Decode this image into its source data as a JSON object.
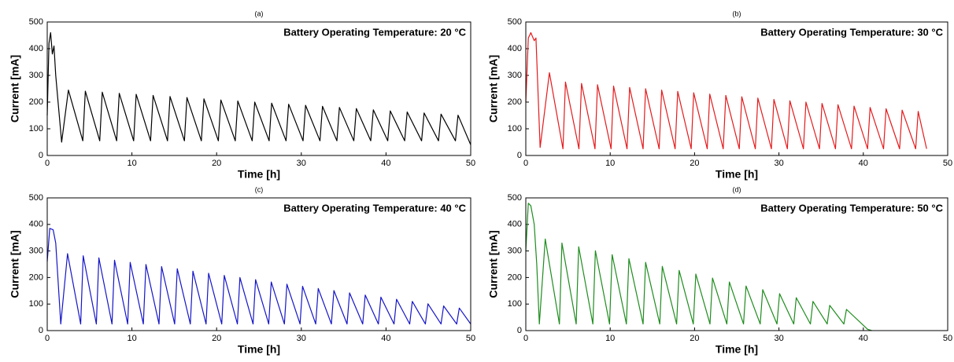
{
  "chart_data": [
    {
      "type": "line",
      "title": "(a)",
      "annotation": "Battery Operating Temperature: 20 °C",
      "x_label": "Time [h]",
      "y_label": "Current [mA]",
      "xlim": [
        0,
        50
      ],
      "ylim": [
        0,
        500
      ],
      "xticks": [
        0,
        10,
        20,
        30,
        40,
        50
      ],
      "yticks": [
        0,
        100,
        200,
        300,
        400,
        500
      ],
      "color": "#000000",
      "x": [
        0,
        0.2,
        0.4,
        0.6,
        0.8,
        1.0,
        1.7,
        2.5,
        4.2,
        4.5,
        6.2,
        6.5,
        8.2,
        8.5,
        10.2,
        10.5,
        12.2,
        12.5,
        14.2,
        14.5,
        16.2,
        16.5,
        18.2,
        18.5,
        20.2,
        20.5,
        22.2,
        22.5,
        24.2,
        24.5,
        26.2,
        26.5,
        28.2,
        28.5,
        30.2,
        30.5,
        32.2,
        32.5,
        34.2,
        34.5,
        36.2,
        36.5,
        38.2,
        38.5,
        40.2,
        40.5,
        42.2,
        42.5,
        44.2,
        44.5,
        46.2,
        46.5,
        48.2,
        48.5,
        50
      ],
      "values": [
        150,
        420,
        460,
        380,
        410,
        300,
        50,
        245,
        55,
        241,
        55,
        237,
        55,
        233,
        55,
        229,
        55,
        225,
        55,
        221,
        55,
        217,
        55,
        212,
        55,
        208,
        55,
        204,
        55,
        200,
        55,
        196,
        55,
        192,
        55,
        188,
        55,
        184,
        55,
        180,
        55,
        176,
        55,
        171,
        55,
        167,
        55,
        163,
        55,
        159,
        55,
        155,
        55,
        151,
        40
      ]
    },
    {
      "type": "line",
      "title": "(b)",
      "annotation": "Battery Operating Temperature: 30 °C",
      "x_label": "Time [h]",
      "y_label": "Current [mA]",
      "xlim": [
        0,
        50
      ],
      "ylim": [
        0,
        500
      ],
      "xticks": [
        0,
        10,
        20,
        30,
        40,
        50
      ],
      "yticks": [
        0,
        100,
        200,
        300,
        400,
        500
      ],
      "color": "#e41a1c",
      "x": [
        0,
        0.3,
        0.6,
        1.0,
        1.2,
        1.7,
        2.8,
        4.4,
        4.7,
        6.3,
        6.6,
        8.2,
        8.5,
        10.1,
        10.4,
        12.0,
        12.3,
        13.9,
        14.2,
        15.8,
        16.1,
        17.7,
        18.0,
        19.6,
        19.9,
        21.5,
        21.8,
        23.4,
        23.7,
        25.3,
        25.6,
        27.2,
        27.5,
        29.1,
        29.4,
        31.0,
        31.3,
        32.9,
        33.2,
        34.8,
        35.1,
        36.7,
        37.0,
        38.6,
        38.9,
        40.5,
        40.8,
        42.4,
        42.7,
        44.3,
        44.6,
        46.2,
        46.5,
        47.5
      ],
      "values": [
        200,
        440,
        460,
        430,
        440,
        30,
        310,
        25,
        275,
        25,
        270,
        25,
        265,
        25,
        260,
        25,
        255,
        25,
        250,
        25,
        245,
        25,
        240,
        25,
        235,
        25,
        230,
        25,
        225,
        25,
        220,
        25,
        215,
        25,
        210,
        25,
        205,
        25,
        200,
        25,
        195,
        25,
        190,
        25,
        185,
        25,
        180,
        25,
        175,
        25,
        170,
        25,
        165,
        25
      ]
    },
    {
      "type": "line",
      "title": "(c)",
      "annotation": "Battery Operating Temperature: 40 °C",
      "x_label": "Time [h]",
      "y_label": "Current [mA]",
      "xlim": [
        0,
        50
      ],
      "ylim": [
        0,
        500
      ],
      "xticks": [
        0,
        10,
        20,
        30,
        40,
        50
      ],
      "yticks": [
        0,
        100,
        200,
        300,
        400,
        500
      ],
      "color": "#1515c8",
      "x": [
        0,
        0.3,
        0.7,
        1.0,
        1.6,
        2.4,
        3.95,
        4.25,
        5.8,
        6.1,
        7.65,
        7.95,
        9.5,
        9.8,
        11.35,
        11.65,
        13.2,
        13.5,
        15.05,
        15.35,
        16.9,
        17.2,
        18.75,
        19.05,
        20.6,
        20.9,
        22.45,
        22.75,
        24.3,
        24.6,
        26.15,
        26.45,
        28.0,
        28.3,
        29.85,
        30.15,
        31.7,
        32.0,
        33.55,
        33.85,
        35.4,
        35.7,
        37.25,
        37.55,
        39.1,
        39.4,
        40.95,
        41.25,
        42.8,
        43.1,
        44.65,
        44.95,
        46.5,
        46.8,
        48.35,
        48.65,
        50
      ],
      "values": [
        260,
        385,
        380,
        330,
        25,
        290,
        25,
        282,
        25,
        274,
        25,
        265,
        25,
        257,
        25,
        249,
        25,
        241,
        25,
        233,
        25,
        224,
        25,
        216,
        25,
        208,
        25,
        200,
        25,
        192,
        25,
        183,
        25,
        175,
        25,
        167,
        25,
        159,
        25,
        151,
        25,
        142,
        25,
        134,
        25,
        126,
        25,
        118,
        25,
        110,
        25,
        101,
        25,
        93,
        25,
        85,
        25
      ]
    },
    {
      "type": "line",
      "title": "(d)",
      "annotation": "Battery Operating Temperature: 50 °C",
      "x_label": "Time [h]",
      "y_label": "Current [mA]",
      "xlim": [
        0,
        50
      ],
      "ylim": [
        0,
        500
      ],
      "xticks": [
        0,
        10,
        20,
        30,
        40,
        50
      ],
      "yticks": [
        0,
        100,
        200,
        300,
        400,
        500
      ],
      "color": "#1e8c1e",
      "x": [
        0,
        0.3,
        0.6,
        1.0,
        1.3,
        1.6,
        2.3,
        3.98,
        4.28,
        5.97,
        6.27,
        7.95,
        8.25,
        9.93,
        10.23,
        11.92,
        12.22,
        13.9,
        14.2,
        15.88,
        16.18,
        17.87,
        18.17,
        19.85,
        20.15,
        21.83,
        22.13,
        23.82,
        24.12,
        25.8,
        26.1,
        27.78,
        28.08,
        29.77,
        30.07,
        31.75,
        32.05,
        33.73,
        34.03,
        35.72,
        36.02,
        37.7,
        38.0,
        40.5,
        41
      ],
      "values": [
        300,
        480,
        470,
        400,
        250,
        25,
        345,
        25,
        330,
        25,
        316,
        25,
        301,
        25,
        286,
        25,
        271,
        25,
        257,
        25,
        242,
        25,
        227,
        25,
        213,
        25,
        198,
        25,
        183,
        25,
        168,
        25,
        154,
        25,
        139,
        25,
        124,
        25,
        110,
        25,
        95,
        25,
        80,
        5,
        0
      ]
    }
  ]
}
